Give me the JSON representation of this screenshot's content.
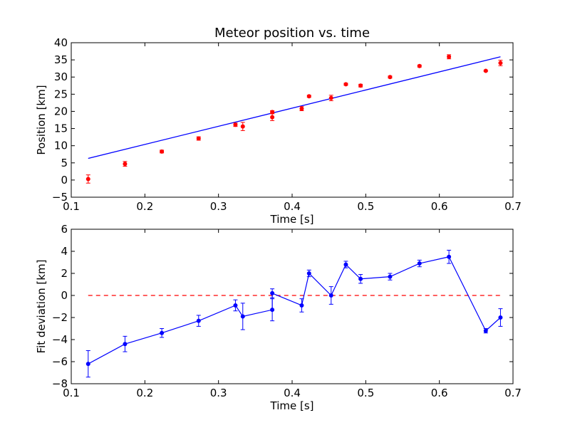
{
  "figure": {
    "colors": {
      "points": "#ff0000",
      "fit_line": "#0000ff",
      "deviation": "#0000ff",
      "zero_line": "#ff0000",
      "axes": "#000000",
      "background": "#ffffff"
    }
  },
  "chart_data": [
    {
      "type": "scatter",
      "title": "Meteor position vs. time",
      "xlabel": "Time [s]",
      "ylabel": "Position [km]",
      "xlim": [
        0.1,
        0.7
      ],
      "ylim": [
        -5,
        40
      ],
      "xticks": [
        "0.1",
        "0.2",
        "0.3",
        "0.4",
        "0.5",
        "0.6",
        "0.7"
      ],
      "yticks": [
        "−5",
        "0",
        "5",
        "10",
        "15",
        "20",
        "25",
        "30",
        "35",
        "40"
      ],
      "grid": false,
      "legend": "none",
      "points": {
        "x": [
          0.123,
          0.173,
          0.223,
          0.273,
          0.323,
          0.333,
          0.373,
          0.373,
          0.413,
          0.423,
          0.453,
          0.473,
          0.493,
          0.533,
          0.573,
          0.613,
          0.663,
          0.683
        ],
        "y": [
          0.3,
          4.7,
          8.3,
          12.1,
          16.1,
          15.6,
          18.3,
          19.8,
          20.8,
          24.4,
          23.9,
          27.9,
          27.5,
          30.0,
          33.2,
          35.9,
          31.8,
          34.1
        ],
        "err": [
          1.2,
          0.7,
          0.4,
          0.5,
          0.5,
          1.2,
          1.0,
          0.4,
          0.6,
          0.3,
          0.8,
          0.3,
          0.4,
          0.3,
          0.3,
          0.6,
          0.2,
          0.8
        ]
      },
      "fit_line": {
        "x": [
          0.123,
          0.683
        ],
        "y": [
          6.3,
          35.9
        ]
      }
    },
    {
      "type": "line",
      "title": "",
      "xlabel": "Time [s]",
      "ylabel": "Fit deviation [km]",
      "xlim": [
        0.1,
        0.7
      ],
      "ylim": [
        -8,
        6
      ],
      "xticks": [
        "0.1",
        "0.2",
        "0.3",
        "0.4",
        "0.5",
        "0.6",
        "0.7"
      ],
      "yticks": [
        "−8",
        "−6",
        "−4",
        "−2",
        "0",
        "2",
        "4",
        "6"
      ],
      "grid": false,
      "legend": "none",
      "series": {
        "x": [
          0.123,
          0.173,
          0.223,
          0.273,
          0.323,
          0.333,
          0.373,
          0.373,
          0.413,
          0.423,
          0.453,
          0.473,
          0.493,
          0.533,
          0.573,
          0.613,
          0.663,
          0.683
        ],
        "y": [
          -6.2,
          -4.4,
          -3.4,
          -2.3,
          -0.9,
          -1.9,
          -1.3,
          0.2,
          -0.9,
          2.0,
          0.0,
          2.8,
          1.5,
          1.7,
          2.9,
          3.5,
          -3.2,
          -2.0
        ],
        "err": [
          1.2,
          0.7,
          0.4,
          0.5,
          0.5,
          1.2,
          1.0,
          0.4,
          0.6,
          0.3,
          0.8,
          0.3,
          0.4,
          0.3,
          0.3,
          0.6,
          0.2,
          0.8
        ]
      },
      "reference_line": {
        "y": 0,
        "x": [
          0.123,
          0.683
        ],
        "style": "dashed"
      }
    }
  ]
}
